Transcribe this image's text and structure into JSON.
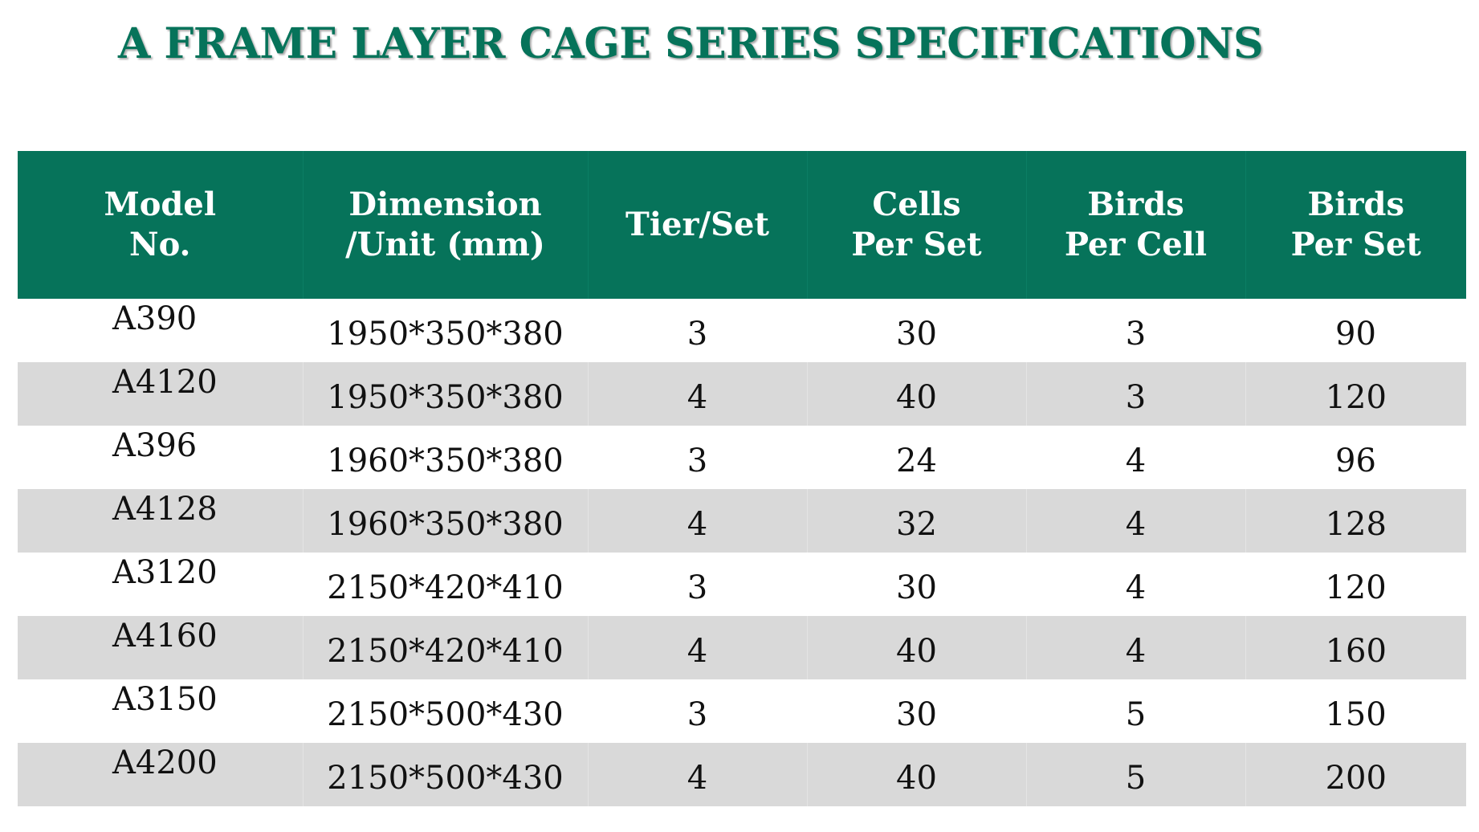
{
  "title": "A FRAME LAYER CAGE SERIES SPECIFICATIONS",
  "colors": {
    "header_bg": "#06735a",
    "header_text": "#ffffff",
    "title_text": "#06735a",
    "alt_row_bg": "#d9d9d9"
  },
  "table": {
    "headers": [
      [
        "Model",
        "No."
      ],
      [
        "Dimension",
        "/Unit (mm)"
      ],
      [
        "Tier/Set"
      ],
      [
        "Cells",
        "Per Set"
      ],
      [
        "Birds",
        "Per Cell"
      ],
      [
        "Birds",
        "Per Set"
      ]
    ],
    "rows": [
      [
        "A390",
        "1950*350*380",
        "3",
        "30",
        "3",
        "90"
      ],
      [
        "A4120",
        "1950*350*380",
        "4",
        "40",
        "3",
        "120"
      ],
      [
        "A396",
        "1960*350*380",
        "3",
        "24",
        "4",
        "96"
      ],
      [
        "A4128",
        "1960*350*380",
        "4",
        "32",
        "4",
        "128"
      ],
      [
        "A3120",
        "2150*420*410",
        "3",
        "30",
        "4",
        "120"
      ],
      [
        "A4160",
        "2150*420*410",
        "4",
        "40",
        "4",
        "160"
      ],
      [
        "A3150",
        "2150*500*430",
        "3",
        "30",
        "5",
        "150"
      ],
      [
        "A4200",
        "2150*500*430",
        "4",
        "40",
        "5",
        "200"
      ]
    ]
  }
}
